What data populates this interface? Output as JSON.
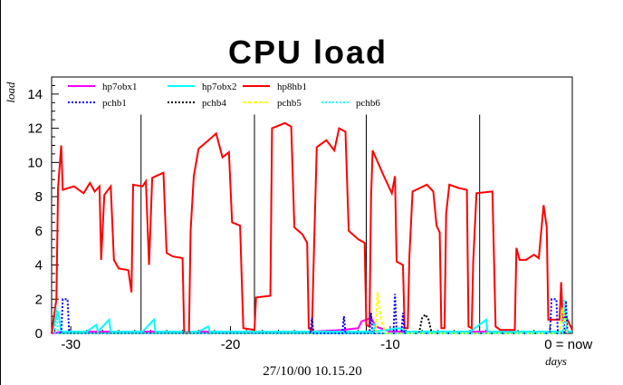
{
  "chart_data": {
    "type": "line",
    "title": "CPU load",
    "ylabel": "load",
    "xlabel": "days",
    "date_stamp": "27/10/00 10.15.20",
    "x_ticks": [
      {
        "value": -30,
        "label": "-30"
      },
      {
        "value": -20,
        "label": "-20"
      },
      {
        "value": -10,
        "label": "-10"
      },
      {
        "value": 0,
        "label": "0 = now"
      }
    ],
    "y_ticks": [
      0,
      2,
      4,
      6,
      8,
      10,
      12,
      14
    ],
    "xlim": [
      -31.2,
      1.4
    ],
    "ylim": [
      0,
      15
    ],
    "day_markers": [
      -25.6,
      -18.5,
      -11.5,
      -4.4
    ],
    "grid": false,
    "legend_position": "top",
    "series": [
      {
        "name": "hp7obx1",
        "color": "#ff00ff",
        "dash": "solid",
        "points": [
          [
            -31.2,
            0
          ],
          [
            -30.5,
            0.1
          ],
          [
            -28,
            0.1
          ],
          [
            -25.5,
            0.1
          ],
          [
            -22,
            0.1
          ],
          [
            -20,
            0.1
          ],
          [
            -18,
            0.1
          ],
          [
            -15,
            0.1
          ],
          [
            -13,
            0.2
          ],
          [
            -12,
            0.3
          ],
          [
            -11.8,
            0.7
          ],
          [
            -11.2,
            0.9
          ],
          [
            -10.9,
            0.4
          ],
          [
            -10,
            0.1
          ],
          [
            -8,
            0.1
          ],
          [
            -5,
            0.1
          ],
          [
            -3,
            0.1
          ],
          [
            -1,
            0.1
          ],
          [
            0,
            0.1
          ],
          [
            1.4,
            0.1
          ]
        ]
      },
      {
        "name": "hp7obx2",
        "color": "#00ffff",
        "dash": "solid",
        "points": [
          [
            -31.2,
            0
          ],
          [
            -30.8,
            1.3
          ],
          [
            -30.6,
            0.1
          ],
          [
            -29,
            0.1
          ],
          [
            -28.4,
            0.5
          ],
          [
            -28.3,
            0.1
          ],
          [
            -27.6,
            0.8
          ],
          [
            -27.5,
            0.1
          ],
          [
            -25.5,
            0.1
          ],
          [
            -24.8,
            0.8
          ],
          [
            -24.7,
            0.1
          ],
          [
            -22,
            0.1
          ],
          [
            -21.4,
            0.4
          ],
          [
            -21.3,
            0.1
          ],
          [
            -18,
            0.1
          ],
          [
            -15,
            0.1
          ],
          [
            -12,
            0.1
          ],
          [
            -11,
            0.1
          ],
          [
            -9.4,
            0.3
          ],
          [
            -9,
            0.1
          ],
          [
            -6,
            0.1
          ],
          [
            -5,
            0.1
          ],
          [
            -4,
            0.8
          ],
          [
            -3.9,
            0.1
          ],
          [
            -2,
            0.1
          ],
          [
            -1,
            0.1
          ],
          [
            1.4,
            0.1
          ]
        ]
      },
      {
        "name": "hp8hb1",
        "color": "#ff0000",
        "dash": "solid",
        "points": [
          [
            -31.2,
            0
          ],
          [
            -30.9,
            2
          ],
          [
            -30.8,
            8.5
          ],
          [
            -30.6,
            11
          ],
          [
            -30.5,
            8.4
          ],
          [
            -29.8,
            8.6
          ],
          [
            -29.2,
            8.2
          ],
          [
            -28.8,
            8.8
          ],
          [
            -28.5,
            8.3
          ],
          [
            -28.2,
            8.6
          ],
          [
            -28.1,
            4.3
          ],
          [
            -27.9,
            8.1
          ],
          [
            -27.5,
            8.6
          ],
          [
            -27.3,
            4.3
          ],
          [
            -27,
            3.8
          ],
          [
            -26.4,
            3.7
          ],
          [
            -26.2,
            2.4
          ],
          [
            -26.1,
            8.7
          ],
          [
            -25.5,
            8.6
          ],
          [
            -25.3,
            8.9
          ],
          [
            -25.1,
            4
          ],
          [
            -24.9,
            9.1
          ],
          [
            -24.2,
            9.4
          ],
          [
            -24,
            4.7
          ],
          [
            -23.6,
            4.5
          ],
          [
            -23,
            4.4
          ],
          [
            -22.9,
            0
          ],
          [
            -22.6,
            0
          ],
          [
            -22.5,
            6
          ],
          [
            -22.3,
            9.2
          ],
          [
            -22,
            10.8
          ],
          [
            -21.5,
            11.2
          ],
          [
            -20.9,
            11.7
          ],
          [
            -20.5,
            10.3
          ],
          [
            -20.1,
            10.6
          ],
          [
            -19.9,
            6.5
          ],
          [
            -19.4,
            6.3
          ],
          [
            -19.2,
            0.3
          ],
          [
            -18.5,
            0.2
          ],
          [
            -18.4,
            2.1
          ],
          [
            -17.5,
            2.2
          ],
          [
            -17.4,
            12
          ],
          [
            -16.6,
            12.3
          ],
          [
            -16.2,
            12.1
          ],
          [
            -16,
            6.2
          ],
          [
            -15.5,
            5.8
          ],
          [
            -15.2,
            5.3
          ],
          [
            -15.1,
            0.3
          ],
          [
            -14.9,
            0.2
          ],
          [
            -14.8,
            4
          ],
          [
            -14.6,
            10.9
          ],
          [
            -14,
            11.3
          ],
          [
            -13.5,
            10.7
          ],
          [
            -13.2,
            12
          ],
          [
            -12.8,
            11.8
          ],
          [
            -12.6,
            6
          ],
          [
            -12,
            5.5
          ],
          [
            -11.6,
            5.3
          ],
          [
            -11.5,
            0.5
          ],
          [
            -11.3,
            0.4
          ],
          [
            -11.2,
            8
          ],
          [
            -11.1,
            10.7
          ],
          [
            -10.4,
            9.2
          ],
          [
            -9.9,
            8.2
          ],
          [
            -9.7,
            9.2
          ],
          [
            -9.6,
            4.2
          ],
          [
            -9.2,
            4
          ],
          [
            -9.1,
            0.3
          ],
          [
            -8.9,
            0.3
          ],
          [
            -8.8,
            4.5
          ],
          [
            -8.6,
            8.3
          ],
          [
            -7.7,
            8.7
          ],
          [
            -7.3,
            8.3
          ],
          [
            -7.1,
            6.3
          ],
          [
            -6.9,
            5.9
          ],
          [
            -6.8,
            0.3
          ],
          [
            -6.6,
            0.3
          ],
          [
            -6.5,
            7
          ],
          [
            -6.3,
            8.7
          ],
          [
            -5.7,
            8.5
          ],
          [
            -5.2,
            8.4
          ],
          [
            -5.1,
            0.4
          ],
          [
            -4.9,
            0.3
          ],
          [
            -4.8,
            4.2
          ],
          [
            -4.6,
            8.2
          ],
          [
            -3.6,
            8.3
          ],
          [
            -3.4,
            0.4
          ],
          [
            -3.1,
            0.2
          ],
          [
            -2.2,
            0.2
          ],
          [
            -2.1,
            5
          ],
          [
            -1.9,
            4.3
          ],
          [
            -1.5,
            4.3
          ],
          [
            -1,
            4.6
          ],
          [
            -0.7,
            4.4
          ],
          [
            -0.4,
            7.5
          ],
          [
            -0.2,
            6.2
          ],
          [
            -0.1,
            0.8
          ],
          [
            0.6,
            0.8
          ],
          [
            0.7,
            3
          ],
          [
            0.8,
            0.8
          ],
          [
            1,
            1
          ],
          [
            1.4,
            0.2
          ]
        ]
      },
      {
        "name": "pchb1",
        "color": "#0000ff",
        "dash": "2,2",
        "points": [
          [
            -30.6,
            0
          ],
          [
            -30.5,
            2
          ],
          [
            -30.2,
            2
          ],
          [
            -30.1,
            0
          ],
          [
            -15,
            0
          ],
          [
            -14.9,
            0.9
          ],
          [
            -14.8,
            0
          ],
          [
            -13,
            0
          ],
          [
            -12.9,
            1
          ],
          [
            -12.8,
            0
          ],
          [
            -11.3,
            0
          ],
          [
            -11.2,
            1.2
          ],
          [
            -11.1,
            0
          ],
          [
            -9.8,
            0
          ],
          [
            -9.7,
            2.3
          ],
          [
            -9.6,
            0
          ],
          [
            -9.3,
            0
          ],
          [
            -9.2,
            1.2
          ],
          [
            -9.1,
            0
          ],
          [
            0,
            0
          ],
          [
            0.1,
            2
          ],
          [
            0.4,
            2
          ],
          [
            0.5,
            0
          ],
          [
            0.9,
            0
          ],
          [
            1,
            1.9
          ],
          [
            1.1,
            0
          ]
        ]
      },
      {
        "name": "pchb4",
        "color": "#000000",
        "dash": "2,2",
        "points": [
          [
            -8.2,
            0
          ],
          [
            -8,
            0.9
          ],
          [
            -7.8,
            1.1
          ],
          [
            -7.6,
            0.8
          ],
          [
            -7.4,
            0
          ]
        ]
      },
      {
        "name": "pchb5",
        "color": "#ffff00",
        "dash": "4,2",
        "points": [
          [
            -10.9,
            0
          ],
          [
            -10.8,
            2.4
          ],
          [
            -10.6,
            1
          ],
          [
            -10.4,
            0.3
          ],
          [
            -10.3,
            0
          ],
          [
            0.6,
            0
          ],
          [
            0.8,
            1.5
          ],
          [
            1,
            0.5
          ],
          [
            1.1,
            0
          ]
        ]
      },
      {
        "name": "pchb6",
        "color": "#00ffff",
        "dash": "2,2",
        "points": [
          [
            -31,
            0
          ],
          [
            -30.9,
            1.5
          ],
          [
            -30.8,
            0
          ],
          [
            -11.1,
            0
          ],
          [
            -11,
            0.6
          ],
          [
            -10.9,
            0
          ],
          [
            0.8,
            0
          ],
          [
            0.9,
            2
          ],
          [
            1,
            1.2
          ],
          [
            1.1,
            0
          ]
        ]
      }
    ]
  }
}
